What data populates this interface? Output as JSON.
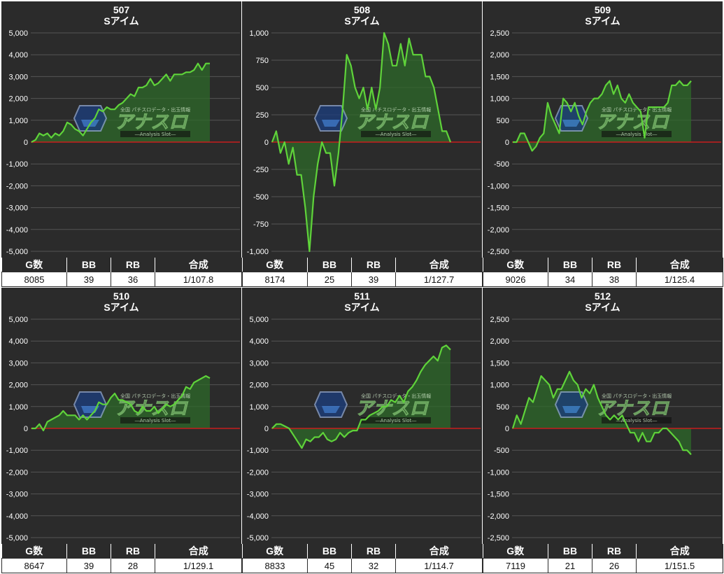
{
  "colors": {
    "background": "#2b2b2b",
    "line": "#5fd33a",
    "area": "#2d6a2a",
    "zero_line": "#c81e1e",
    "grid": "#555555",
    "text": "#ffffff"
  },
  "table_headers": {
    "games": "G数",
    "bb": "BB",
    "rb": "RB",
    "total": "合成"
  },
  "watermark": {
    "top_text": "全国 パチスロデータ・出玉情報",
    "brand": "アナスロ",
    "sub": "―Analysis Slot―"
  },
  "panels": [
    {
      "machine": "507",
      "name": "Sアイム",
      "games": "8085",
      "bb": "39",
      "rb": "36",
      "total": "1/107.8"
    },
    {
      "machine": "508",
      "name": "Sアイム",
      "games": "8174",
      "bb": "25",
      "rb": "39",
      "total": "1/127.7"
    },
    {
      "machine": "509",
      "name": "Sアイム",
      "games": "9026",
      "bb": "34",
      "rb": "38",
      "total": "1/125.4"
    },
    {
      "machine": "510",
      "name": "Sアイム",
      "games": "8647",
      "bb": "39",
      "rb": "28",
      "total": "1/129.1"
    },
    {
      "machine": "511",
      "name": "Sアイム",
      "games": "8833",
      "bb": "45",
      "rb": "32",
      "total": "1/114.7"
    },
    {
      "machine": "512",
      "name": "Sアイム",
      "games": "7119",
      "bb": "21",
      "rb": "26",
      "total": "1/151.5"
    }
  ],
  "chart_data": [
    {
      "type": "area",
      "title": "507",
      "subtitle": "Sアイム",
      "ylim": [
        -5000,
        5000
      ],
      "yticks": [
        "5,000",
        "4,000",
        "3,000",
        "2,000",
        "1,000",
        "0",
        "-1,000",
        "-2,000",
        "-3,000",
        "-4,000",
        "-5,000"
      ],
      "tick_values": [
        5000,
        4000,
        3000,
        2000,
        1000,
        0,
        -1000,
        -2000,
        -3000,
        -4000,
        -5000
      ],
      "grid": true,
      "values": [
        0,
        100,
        400,
        300,
        400,
        200,
        400,
        300,
        500,
        900,
        800,
        600,
        500,
        300,
        600,
        900,
        1100,
        1500,
        1400,
        1600,
        1500,
        1500,
        1700,
        1800,
        2000,
        2200,
        2100,
        2500,
        2500,
        2600,
        2900,
        2600,
        2700,
        2900,
        3100,
        2800,
        3100,
        3100,
        3100,
        3200,
        3200,
        3300,
        3600,
        3300,
        3600,
        3600
      ]
    },
    {
      "type": "area",
      "title": "508",
      "subtitle": "Sアイム",
      "ylim": [
        -1000,
        1000
      ],
      "yticks": [
        "1,000",
        "750",
        "500",
        "250",
        "0",
        "-250",
        "-500",
        "-750",
        "-1,000"
      ],
      "tick_values": [
        1000,
        750,
        500,
        250,
        0,
        -250,
        -500,
        -750,
        -1000
      ],
      "grid": true,
      "values": [
        0,
        100,
        -100,
        0,
        -200,
        -50,
        -300,
        -300,
        -600,
        -1000,
        -500,
        -200,
        0,
        -100,
        -100,
        -400,
        -100,
        300,
        800,
        700,
        500,
        400,
        500,
        300,
        500,
        300,
        500,
        1000,
        900,
        700,
        700,
        900,
        700,
        950,
        800,
        800,
        800,
        600,
        600,
        500,
        300,
        100,
        100,
        0
      ]
    },
    {
      "type": "area",
      "title": "509",
      "subtitle": "Sアイム",
      "ylim": [
        -2500,
        2500
      ],
      "yticks": [
        "2,500",
        "2,000",
        "1,500",
        "1,000",
        "500",
        "0",
        "-500",
        "-1,000",
        "-1,500",
        "-2,000",
        "-2,500"
      ],
      "tick_values": [
        2500,
        2000,
        1500,
        1000,
        500,
        0,
        -500,
        -1000,
        -1500,
        -2000,
        -2500
      ],
      "grid": true,
      "values": [
        0,
        0,
        200,
        200,
        0,
        -200,
        -100,
        100,
        200,
        900,
        600,
        400,
        200,
        1000,
        900,
        700,
        900,
        600,
        400,
        700,
        900,
        1000,
        1000,
        1100,
        1300,
        1400,
        1100,
        1300,
        1000,
        900,
        1100,
        900,
        800,
        700,
        100,
        800,
        800,
        800,
        800,
        800,
        900,
        1300,
        1300,
        1400,
        1300,
        1300,
        1400
      ]
    },
    {
      "type": "area",
      "title": "510",
      "subtitle": "Sアイム",
      "ylim": [
        -5000,
        5000
      ],
      "yticks": [
        "5,000",
        "4,000",
        "3,000",
        "2,000",
        "1,000",
        "0",
        "-1,000",
        "-2,000",
        "-3,000",
        "-4,000",
        "-5,000"
      ],
      "tick_values": [
        5000,
        4000,
        3000,
        2000,
        1000,
        0,
        -1000,
        -2000,
        -3000,
        -4000,
        -5000
      ],
      "grid": true,
      "values": [
        0,
        0,
        200,
        -100,
        300,
        400,
        500,
        600,
        800,
        600,
        600,
        600,
        400,
        600,
        400,
        600,
        800,
        1200,
        1100,
        1100,
        1400,
        1600,
        1300,
        1300,
        1200,
        1100,
        800,
        700,
        1000,
        800,
        800,
        1000,
        700,
        900,
        1100,
        1000,
        1100,
        1300,
        1500,
        1900,
        1800,
        2100,
        2200,
        2300,
        2400,
        2300
      ]
    },
    {
      "type": "area",
      "title": "511",
      "subtitle": "Sアイム",
      "ylim": [
        -5000,
        5000
      ],
      "yticks": [
        "5,000",
        "4,000",
        "3,000",
        "2,000",
        "1,000",
        "0",
        "-1,000",
        "-2,000",
        "-3,000",
        "-4,000",
        "-5,000"
      ],
      "tick_values": [
        5000,
        4000,
        3000,
        2000,
        1000,
        0,
        -1000,
        -2000,
        -3000,
        -4000,
        -5000
      ],
      "grid": true,
      "values": [
        0,
        200,
        200,
        100,
        0,
        -300,
        -600,
        -900,
        -500,
        -600,
        -400,
        -400,
        -200,
        -500,
        -600,
        -500,
        -200,
        -400,
        -200,
        -100,
        -100,
        400,
        400,
        600,
        700,
        800,
        1000,
        1000,
        1300,
        1200,
        1500,
        1200,
        1700,
        1900,
        2200,
        2600,
        2900,
        3100,
        3300,
        3100,
        3700,
        3800,
        3600
      ]
    },
    {
      "type": "area",
      "title": "512",
      "subtitle": "Sアイム",
      "ylim": [
        -2500,
        2500
      ],
      "yticks": [
        "2,500",
        "2,000",
        "1,500",
        "1,000",
        "500",
        "0",
        "-500",
        "-1,000",
        "-1,500",
        "-2,000",
        "-2,500"
      ],
      "tick_values": [
        2500,
        2000,
        1500,
        1000,
        500,
        0,
        -500,
        -1000,
        -1500,
        -2000,
        -2500
      ],
      "grid": true,
      "values": [
        0,
        300,
        100,
        400,
        700,
        600,
        900,
        1200,
        1100,
        1000,
        700,
        900,
        900,
        1100,
        1300,
        1100,
        1000,
        700,
        900,
        800,
        1000,
        700,
        500,
        300,
        200,
        300,
        200,
        300,
        100,
        -100,
        -100,
        -300,
        -100,
        -300,
        -300,
        -100,
        -100,
        0,
        0,
        -100,
        -200,
        -300,
        -500,
        -500,
        -600
      ]
    }
  ]
}
